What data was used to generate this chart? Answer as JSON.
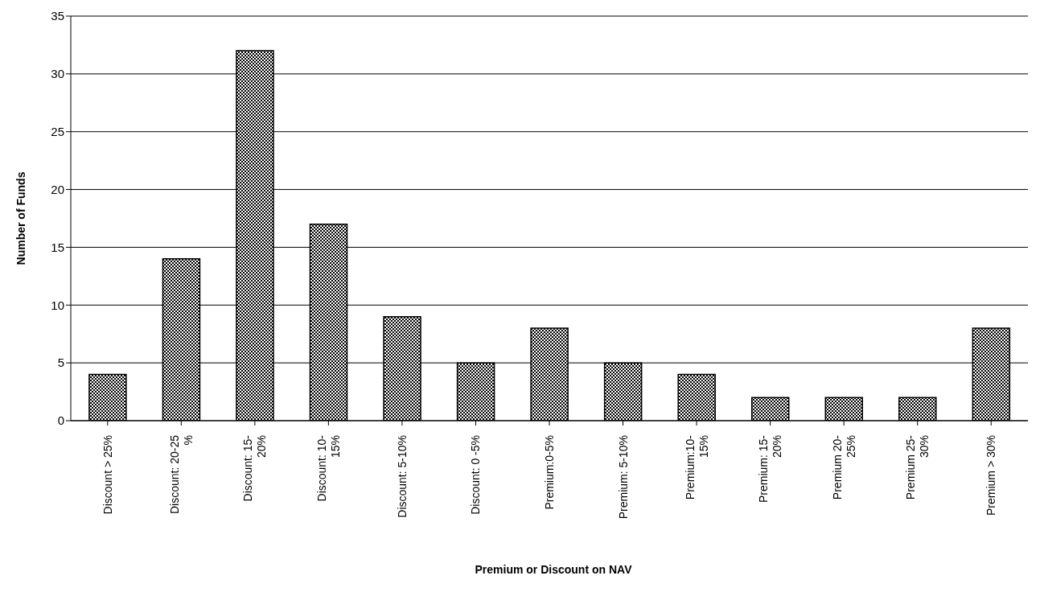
{
  "chart_data": {
    "type": "bar",
    "xlabel": "Premium or Discount on NAV",
    "ylabel": "Number of Funds",
    "categories": [
      "Discount > 25%",
      "Discount:  20-25\n%",
      "Discount:  15-\n20%",
      "Discount:  10-\n15%",
      "Discount:  5-10%",
      "Discount:  0 -5%",
      "Premium:0-5%",
      "Premium:  5-10%",
      "Premium:10-\n15%",
      "Premium:  15-\n20%",
      "Premium  20-\n25%",
      "Premium  25-\n30%",
      "Premium > 30%"
    ],
    "values": [
      4,
      14,
      32,
      17,
      9,
      5,
      8,
      5,
      4,
      2,
      2,
      2,
      8
    ],
    "color": "#000000",
    "ylim": [
      0,
      35
    ],
    "yticks": [
      0,
      5,
      10,
      15,
      20,
      25,
      30,
      35
    ],
    "grid": "y",
    "legend": false
  }
}
